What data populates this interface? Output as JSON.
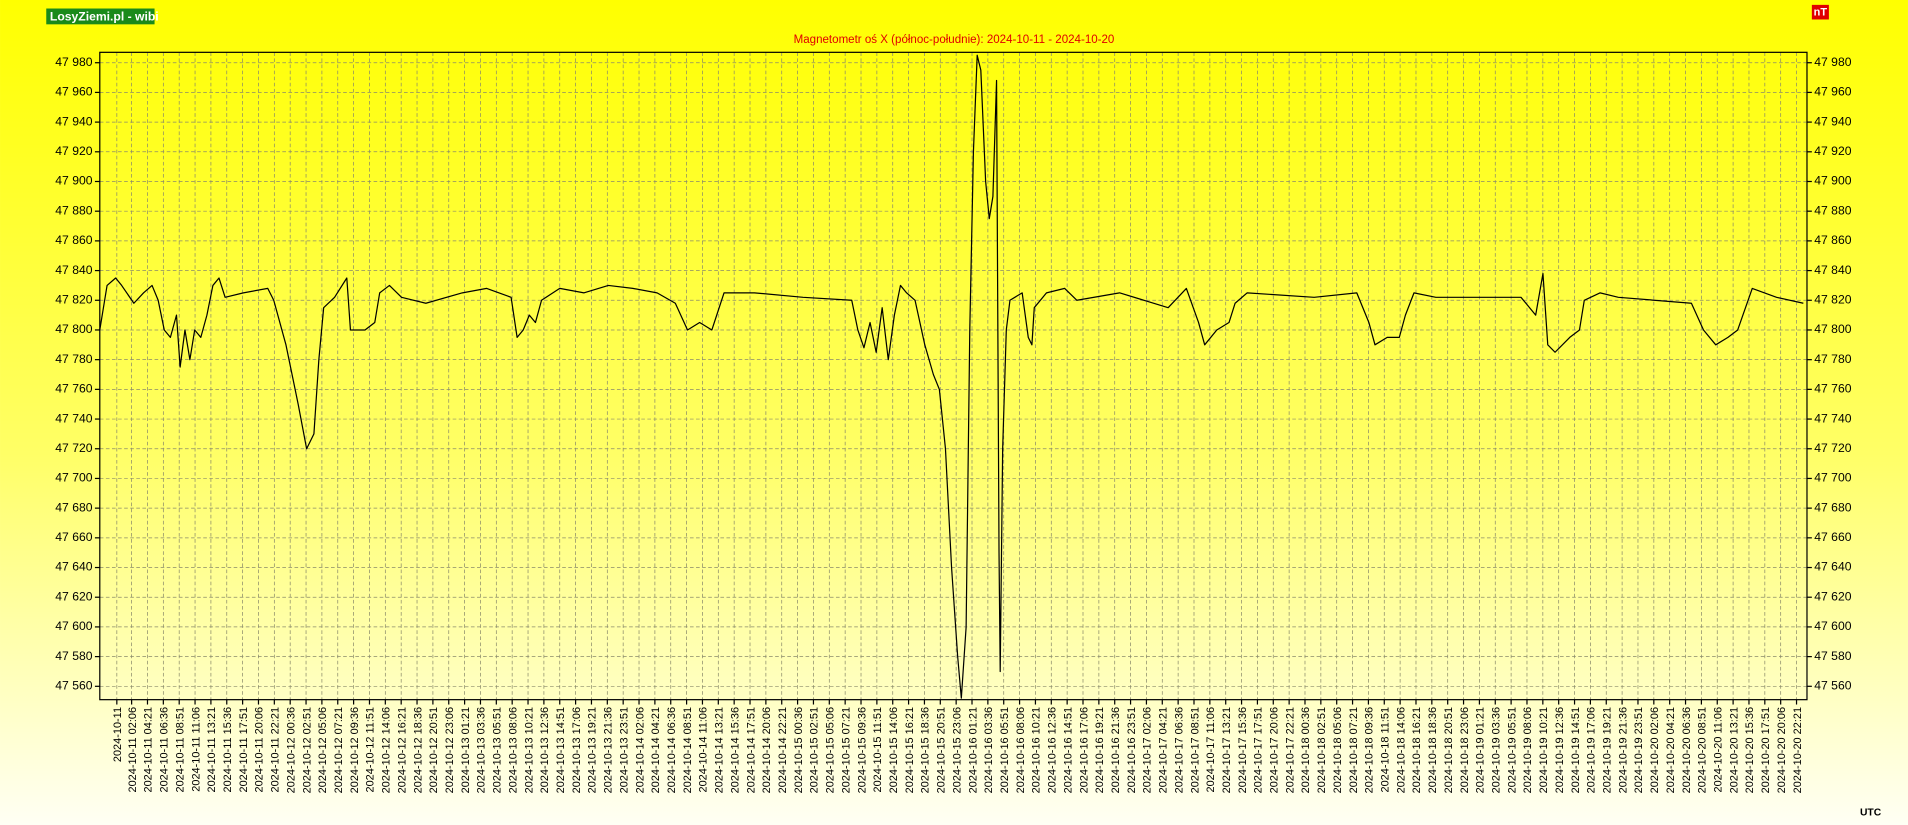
{
  "chart_data": {
    "type": "line",
    "brand": "LosyZiemi.pl - wibi",
    "title": "Magnetometr oś X (północ-południe): 2024-10-11 - 2024-10-20",
    "unit": "nT",
    "timezone": "UTC",
    "color": "#000000",
    "grid": true,
    "xlim": [
      "2024-10-10 21:35",
      "2024-10-20 23:50"
    ],
    "ylim": [
      47551,
      47987
    ],
    "yticks": [
      {
        "value": 47560,
        "label": "47 560"
      },
      {
        "value": 47580,
        "label": "47 580"
      },
      {
        "value": 47600,
        "label": "47 600"
      },
      {
        "value": 47620,
        "label": "47 620"
      },
      {
        "value": 47640,
        "label": "47 640"
      },
      {
        "value": 47660,
        "label": "47 660"
      },
      {
        "value": 47680,
        "label": "47 680"
      },
      {
        "value": 47700,
        "label": "47 700"
      },
      {
        "value": 47720,
        "label": "47 720"
      },
      {
        "value": 47740,
        "label": "47 740"
      },
      {
        "value": 47760,
        "label": "47 760"
      },
      {
        "value": 47780,
        "label": "47 780"
      },
      {
        "value": 47800,
        "label": "47 800"
      },
      {
        "value": 47820,
        "label": "47 820"
      },
      {
        "value": 47840,
        "label": "47 840"
      },
      {
        "value": 47860,
        "label": "47 860"
      },
      {
        "value": 47880,
        "label": "47 880"
      },
      {
        "value": 47900,
        "label": "47 900"
      },
      {
        "value": 47920,
        "label": "47 920"
      },
      {
        "value": 47940,
        "label": "47 940"
      },
      {
        "value": 47960,
        "label": "47 960"
      },
      {
        "value": 47980,
        "label": "47 980"
      }
    ],
    "xticks": [
      "2024-10-11",
      "2024-10-11 02:06",
      "2024-10-11 04:21",
      "2024-10-11 06:36",
      "2024-10-11 08:51",
      "2024-10-11 11:06",
      "2024-10-11 13:21",
      "2024-10-11 15:36",
      "2024-10-11 17:51",
      "2024-10-11 20:06",
      "2024-10-11 22:21",
      "2024-10-12 00:36",
      "2024-10-12 02:51",
      "2024-10-12 05:06",
      "2024-10-12 07:21",
      "2024-10-12 09:36",
      "2024-10-12 11:51",
      "2024-10-12 14:06",
      "2024-10-12 16:21",
      "2024-10-12 18:36",
      "2024-10-12 20:51",
      "2024-10-12 23:06",
      "2024-10-13 01:21",
      "2024-10-13 03:36",
      "2024-10-13 05:51",
      "2024-10-13 08:06",
      "2024-10-13 10:21",
      "2024-10-13 12:36",
      "2024-10-13 14:51",
      "2024-10-13 17:06",
      "2024-10-13 19:21",
      "2024-10-13 21:36",
      "2024-10-13 23:51",
      "2024-10-14 02:06",
      "2024-10-14 04:21",
      "2024-10-14 06:36",
      "2024-10-14 08:51",
      "2024-10-14 11:06",
      "2024-10-14 13:21",
      "2024-10-14 15:36",
      "2024-10-14 17:51",
      "2024-10-14 20:06",
      "2024-10-14 22:21",
      "2024-10-15 00:36",
      "2024-10-15 02:51",
      "2024-10-15 05:06",
      "2024-10-15 07:21",
      "2024-10-15 09:36",
      "2024-10-15 11:51",
      "2024-10-15 14:06",
      "2024-10-15 16:21",
      "2024-10-15 18:36",
      "2024-10-15 20:51",
      "2024-10-15 23:06",
      "2024-10-16 01:21",
      "2024-10-16 03:36",
      "2024-10-16 05:51",
      "2024-10-16 08:06",
      "2024-10-16 10:21",
      "2024-10-16 12:36",
      "2024-10-16 14:51",
      "2024-10-16 17:06",
      "2024-10-16 19:21",
      "2024-10-16 21:36",
      "2024-10-16 23:51",
      "2024-10-17 02:06",
      "2024-10-17 04:21",
      "2024-10-17 06:36",
      "2024-10-17 08:51",
      "2024-10-17 11:06",
      "2024-10-17 13:21",
      "2024-10-17 15:36",
      "2024-10-17 17:51",
      "2024-10-17 20:06",
      "2024-10-17 22:21",
      "2024-10-18 00:36",
      "2024-10-18 02:51",
      "2024-10-18 05:06",
      "2024-10-18 07:21",
      "2024-10-18 09:36",
      "2024-10-18 11:51",
      "2024-10-18 14:06",
      "2024-10-18 16:21",
      "2024-10-18 18:36",
      "2024-10-18 20:51",
      "2024-10-18 23:06",
      "2024-10-19 01:21",
      "2024-10-19 03:36",
      "2024-10-19 05:51",
      "2024-10-19 08:06",
      "2024-10-19 10:21",
      "2024-10-19 12:36",
      "2024-10-19 14:51",
      "2024-10-19 17:06",
      "2024-10-19 19:21",
      "2024-10-19 21:36",
      "2024-10-19 23:51",
      "2024-10-20 02:06",
      "2024-10-20 04:21",
      "2024-10-20 06:36",
      "2024-10-20 08:51",
      "2024-10-20 11:06",
      "2024-10-20 13:21",
      "2024-10-20 15:36",
      "2024-10-20 17:51",
      "2024-10-20 20:06",
      "2024-10-20 22:21"
    ],
    "x": [
      "2024-10-10 21:35",
      "2024-10-10 22:37",
      "2024-10-10 23:50",
      "2024-10-11 00:41",
      "2024-10-11 02:25",
      "2024-10-11 03:48",
      "2024-10-11 05:00",
      "2024-10-11 05:52",
      "2024-10-11 06:44",
      "2024-10-11 07:36",
      "2024-10-11 08:28",
      "2024-10-11 08:59",
      "2024-10-11 09:40",
      "2024-10-11 10:22",
      "2024-10-11 11:03",
      "2024-10-11 11:55",
      "2024-10-11 12:47",
      "2024-10-11 13:38",
      "2024-10-11 14:30",
      "2024-10-11 15:22",
      "2024-10-11 17:57",
      "2024-10-11 21:25",
      "2024-10-11 22:16",
      "2024-10-12 00:00",
      "2024-10-12 01:44",
      "2024-10-12 02:56",
      "2024-10-12 03:58",
      "2024-10-12 04:40",
      "2024-10-12 05:21",
      "2024-10-12 06:54",
      "2024-10-12 08:38",
      "2024-10-12 09:09",
      "2024-10-12 11:13",
      "2024-10-12 12:36",
      "2024-10-12 13:18",
      "2024-10-12 14:41",
      "2024-10-12 16:24",
      "2024-10-12 19:51",
      "2024-10-13 01:02",
      "2024-10-13 04:29",
      "2024-10-13 07:57",
      "2024-10-13 08:48",
      "2024-10-13 09:40",
      "2024-10-13 10:32",
      "2024-10-13 11:24",
      "2024-10-13 12:16",
      "2024-10-13 14:51",
      "2024-10-13 18:18",
      "2024-10-13 21:45",
      "2024-10-14 01:13",
      "2024-10-14 04:40",
      "2024-10-14 07:15",
      "2024-10-14 08:59",
      "2024-10-14 10:42",
      "2024-10-14 12:26",
      "2024-10-14 14:10",
      "2024-10-14 18:29",
      "2024-10-15 01:23",
      "2024-10-15 08:17",
      "2024-10-15 09:09",
      "2024-10-15 10:01",
      "2024-10-15 10:53",
      "2024-10-15 11:45",
      "2024-10-15 12:36",
      "2024-10-15 13:28",
      "2024-10-15 14:20",
      "2024-10-15 15:12",
      "2024-10-15 16:04",
      "2024-10-15 17:16",
      "2024-10-15 18:39",
      "2024-10-15 19:52",
      "2024-10-15 20:43",
      "2024-10-15 21:35",
      "2024-10-15 22:27",
      "2024-10-15 23:19",
      "2024-10-15 23:50",
      "2024-10-16 00:31",
      "2024-10-16 01:02",
      "2024-10-16 01:33",
      "2024-10-16 02:05",
      "2024-10-16 02:36",
      "2024-10-16 03:17",
      "2024-10-16 03:48",
      "2024-10-16 04:19",
      "2024-10-16 04:50",
      "2024-10-16 05:11",
      "2024-10-16 05:21",
      "2024-10-16 05:42",
      "2024-10-16 06:13",
      "2024-10-16 06:44",
      "2024-10-16 08:28",
      "2024-10-16 09:20",
      "2024-10-16 09:51",
      "2024-10-16 10:11",
      "2024-10-16 11:55",
      "2024-10-16 14:30",
      "2024-10-16 16:14",
      "2024-10-16 22:17",
      "2024-10-17 05:11",
      "2024-10-17 07:46",
      "2024-10-17 09:30",
      "2024-10-17 10:22",
      "2024-10-17 12:05",
      "2024-10-17 13:49",
      "2024-10-17 14:41",
      "2024-10-17 16:24",
      "2024-10-18 01:54",
      "2024-10-18 07:57",
      "2024-10-18 09:40",
      "2024-10-18 10:32",
      "2024-10-18 12:16",
      "2024-10-18 13:59",
      "2024-10-18 14:51",
      "2024-10-18 16:04",
      "2024-10-18 19:10",
      "2024-10-19 07:15",
      "2024-10-19 09:20",
      "2024-10-19 10:22",
      "2024-10-19 11:03",
      "2024-10-19 12:05",
      "2024-10-19 14:10",
      "2024-10-19 15:33",
      "2024-10-19 16:14",
      "2024-10-19 18:29",
      "2024-10-19 21:04",
      "2024-10-20 07:26",
      "2024-10-20 09:09",
      "2024-10-20 10:53",
      "2024-10-20 12:37",
      "2024-10-20 14:00",
      "2024-10-20 16:04",
      "2024-10-20 19:31",
      "2024-10-20 23:19"
    ],
    "values": [
      47800,
      47830,
      47835,
      47830,
      47818,
      47825,
      47830,
      47820,
      47800,
      47795,
      47810,
      47775,
      47800,
      47780,
      47800,
      47795,
      47810,
      47830,
      47835,
      47822,
      47825,
      47828,
      47820,
      47790,
      47750,
      47720,
      47730,
      47780,
      47815,
      47822,
      47835,
      47800,
      47800,
      47805,
      47825,
      47830,
      47822,
      47818,
      47825,
      47828,
      47822,
      47795,
      47800,
      47810,
      47805,
      47820,
      47828,
      47825,
      47830,
      47828,
      47825,
      47818,
      47800,
      47805,
      47800,
      47825,
      47825,
      47822,
      47820,
      47800,
      47788,
      47805,
      47785,
      47815,
      47780,
      47810,
      47830,
      47825,
      47820,
      47790,
      47770,
      47760,
      47720,
      47640,
      47580,
      47552,
      47600,
      47800,
      47920,
      47985,
      47975,
      47900,
      47875,
      47890,
      47968,
      47650,
      47570,
      47720,
      47800,
      47820,
      47825,
      47795,
      47790,
      47815,
      47825,
      47828,
      47820,
      47825,
      47815,
      47828,
      47805,
      47790,
      47800,
      47805,
      47818,
      47825,
      47822,
      47825,
      47805,
      47790,
      47795,
      47795,
      47810,
      47825,
      47822,
      47822,
      47810,
      47838,
      47790,
      47785,
      47795,
      47800,
      47820,
      47825,
      47822,
      47818,
      47800,
      47790,
      47795,
      47800,
      47828,
      47822,
      47818
    ]
  }
}
